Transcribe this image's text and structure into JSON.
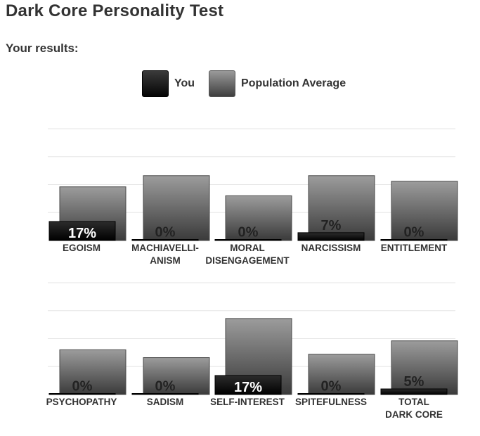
{
  "title": "Dark Core Personality Test",
  "subtitle": "Your results:",
  "legend": {
    "you_label": "You",
    "avg_label": "Population Average"
  },
  "colors": {
    "you": "#080808",
    "avg": "#5a5a5a",
    "grid": "#e6e6e6",
    "text": "#333333"
  },
  "chart_data": [
    {
      "type": "bar",
      "categories": [
        "EGOISM",
        "MACHIAVELLI-\nANISM",
        "MORAL\nDISENGAGEMENT",
        "NARCISSISM",
        "ENTITLEMENT"
      ],
      "series": [
        {
          "name": "You",
          "values": [
            17,
            0,
            0,
            7,
            0
          ]
        },
        {
          "name": "Population Average",
          "values": [
            48,
            58,
            40,
            58,
            53
          ]
        }
      ],
      "data_labels": [
        "17%",
        "0%",
        "0%",
        "7%",
        "0%"
      ],
      "ylim": [
        0,
        100
      ],
      "grid": true
    },
    {
      "type": "bar",
      "categories": [
        "PSYCHOPATHY",
        "SADISM",
        "SELF-INTEREST",
        "SPITEFULNESS",
        "TOTAL\nDARK CORE"
      ],
      "series": [
        {
          "name": "You",
          "values": [
            0,
            0,
            17,
            0,
            5
          ]
        },
        {
          "name": "Population Average",
          "values": [
            40,
            33,
            68,
            36,
            48
          ]
        }
      ],
      "data_labels": [
        "0%",
        "0%",
        "17%",
        "0%",
        "5%"
      ],
      "ylim": [
        0,
        100
      ],
      "grid": true
    }
  ]
}
